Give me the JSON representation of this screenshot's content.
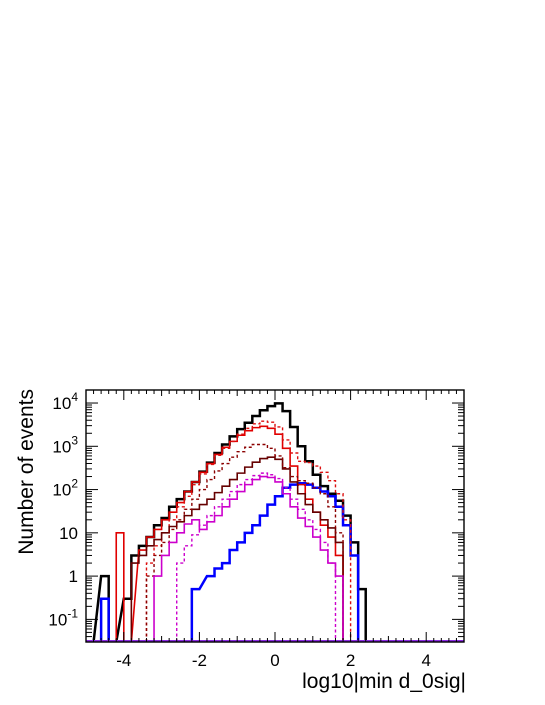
{
  "chart_data": {
    "type": "histogram",
    "xlabel": "log10|min d_0sig|",
    "ylabel": "Number of events",
    "x_range": [
      -5,
      5
    ],
    "y_range": [
      0.03,
      20000
    ],
    "y_scale": "log",
    "bin_width": 0.2,
    "x_ticks": [
      {
        "value": -4,
        "label": "-4"
      },
      {
        "value": -2,
        "label": "-2"
      },
      {
        "value": 0,
        "label": "0"
      },
      {
        "value": 2,
        "label": "2"
      },
      {
        "value": 4,
        "label": "4"
      }
    ],
    "y_ticks": [
      {
        "value": 0.1,
        "base": "10",
        "exp": "-1"
      },
      {
        "value": 1,
        "base": "1",
        "exp": ""
      },
      {
        "value": 10,
        "base": "10",
        "exp": ""
      },
      {
        "value": 100,
        "base": "10",
        "exp": "2"
      },
      {
        "value": 1000,
        "base": "10",
        "exp": "3"
      },
      {
        "value": 10000,
        "base": "10",
        "exp": "4"
      }
    ],
    "grid": false,
    "legend": "none",
    "series": [
      {
        "color": "#000000",
        "style": "solid",
        "width": 2.5,
        "points": [
          [
            -5.0,
            0
          ],
          [
            -4.6,
            1
          ],
          [
            -4.4,
            0
          ],
          [
            -4.0,
            0.3
          ],
          [
            -3.8,
            3
          ],
          [
            -3.6,
            5
          ],
          [
            -3.4,
            8
          ],
          [
            -3.2,
            15
          ],
          [
            -3.0,
            22
          ],
          [
            -2.8,
            40
          ],
          [
            -2.6,
            60
          ],
          [
            -2.4,
            90
          ],
          [
            -2.2,
            150
          ],
          [
            -2.0,
            260
          ],
          [
            -1.8,
            420
          ],
          [
            -1.6,
            700
          ],
          [
            -1.4,
            1100
          ],
          [
            -1.2,
            1700
          ],
          [
            -1.0,
            2500
          ],
          [
            -0.8,
            3500
          ],
          [
            -0.6,
            5000
          ],
          [
            -0.4,
            6800
          ],
          [
            -0.2,
            8500
          ],
          [
            0.0,
            9800
          ],
          [
            0.2,
            6500
          ],
          [
            0.4,
            2800
          ],
          [
            0.6,
            1000
          ],
          [
            0.8,
            450
          ],
          [
            1.0,
            220
          ],
          [
            1.2,
            120
          ],
          [
            1.4,
            80
          ],
          [
            1.6,
            55
          ],
          [
            1.8,
            25
          ],
          [
            2.0,
            6
          ],
          [
            2.2,
            0.5
          ],
          [
            2.4,
            0
          ]
        ]
      },
      {
        "color": "#0000ff",
        "style": "solid",
        "width": 2.5,
        "points": [
          [
            -4.6,
            0.3
          ],
          [
            -4.4,
            0
          ],
          [
            -2.4,
            0
          ],
          [
            -2.2,
            0.5
          ],
          [
            -1.8,
            1
          ],
          [
            -1.6,
            1.5
          ],
          [
            -1.4,
            2
          ],
          [
            -1.2,
            4
          ],
          [
            -1.0,
            6
          ],
          [
            -0.8,
            10
          ],
          [
            -0.6,
            15
          ],
          [
            -0.4,
            25
          ],
          [
            -0.2,
            45
          ],
          [
            0.0,
            70
          ],
          [
            0.2,
            110
          ],
          [
            0.4,
            130
          ],
          [
            0.6,
            140
          ],
          [
            0.8,
            130
          ],
          [
            1.0,
            110
          ],
          [
            1.2,
            90
          ],
          [
            1.4,
            70
          ],
          [
            1.6,
            40
          ],
          [
            1.8,
            15
          ],
          [
            2.0,
            3
          ],
          [
            2.2,
            0
          ]
        ]
      },
      {
        "color": "#e00000",
        "style": "solid",
        "width": 1.6,
        "points": [
          [
            -4.2,
            10
          ],
          [
            -4.0,
            0
          ],
          [
            -3.6,
            4
          ],
          [
            -3.4,
            8
          ],
          [
            -3.2,
            12
          ],
          [
            -3.0,
            20
          ],
          [
            -2.8,
            30
          ],
          [
            -2.6,
            50
          ],
          [
            -2.4,
            90
          ],
          [
            -2.2,
            150
          ],
          [
            -2.0,
            250
          ],
          [
            -1.8,
            400
          ],
          [
            -1.6,
            650
          ],
          [
            -1.4,
            950
          ],
          [
            -1.2,
            1300
          ],
          [
            -1.0,
            1800
          ],
          [
            -0.8,
            2300
          ],
          [
            -0.6,
            2700
          ],
          [
            -0.4,
            2900
          ],
          [
            -0.2,
            2600
          ],
          [
            0.0,
            1900
          ],
          [
            0.2,
            900
          ],
          [
            0.4,
            350
          ],
          [
            0.6,
            130
          ],
          [
            0.8,
            60
          ],
          [
            1.0,
            30
          ],
          [
            1.2,
            15
          ],
          [
            1.4,
            8
          ],
          [
            1.6,
            3
          ],
          [
            1.8,
            0
          ]
        ]
      },
      {
        "color": "#dd1010",
        "style": "dashed",
        "width": 1.4,
        "points": [
          [
            -3.4,
            2
          ],
          [
            -3.2,
            5
          ],
          [
            -3.0,
            10
          ],
          [
            -2.8,
            20
          ],
          [
            -2.6,
            40
          ],
          [
            -2.4,
            70
          ],
          [
            -2.2,
            130
          ],
          [
            -2.0,
            230
          ],
          [
            -1.8,
            380
          ],
          [
            -1.6,
            620
          ],
          [
            -1.4,
            900
          ],
          [
            -1.2,
            1300
          ],
          [
            -1.0,
            1900
          ],
          [
            -0.8,
            2600
          ],
          [
            -0.6,
            3300
          ],
          [
            -0.4,
            3800
          ],
          [
            -0.2,
            3600
          ],
          [
            0.0,
            2800
          ],
          [
            0.2,
            1400
          ],
          [
            0.4,
            700
          ],
          [
            0.6,
            450
          ],
          [
            0.8,
            420
          ],
          [
            1.0,
            350
          ],
          [
            1.2,
            250
          ],
          [
            1.4,
            160
          ],
          [
            1.6,
            80
          ],
          [
            1.8,
            20
          ],
          [
            2.0,
            0
          ]
        ]
      },
      {
        "color": "#660000",
        "style": "solid",
        "width": 1.6,
        "points": [
          [
            -4.0,
            0
          ],
          [
            -3.8,
            2
          ],
          [
            -3.6,
            3
          ],
          [
            -3.4,
            5
          ],
          [
            -3.2,
            7
          ],
          [
            -3.0,
            10
          ],
          [
            -2.8,
            14
          ],
          [
            -2.6,
            18
          ],
          [
            -2.4,
            25
          ],
          [
            -2.2,
            35
          ],
          [
            -2.0,
            45
          ],
          [
            -1.8,
            60
          ],
          [
            -1.6,
            85
          ],
          [
            -1.4,
            120
          ],
          [
            -1.2,
            170
          ],
          [
            -1.0,
            240
          ],
          [
            -0.8,
            330
          ],
          [
            -0.6,
            430
          ],
          [
            -0.4,
            520
          ],
          [
            -0.2,
            560
          ],
          [
            0.0,
            500
          ],
          [
            0.2,
            300
          ],
          [
            0.4,
            150
          ],
          [
            0.6,
            80
          ],
          [
            0.8,
            45
          ],
          [
            1.0,
            30
          ],
          [
            1.2,
            20
          ],
          [
            1.4,
            13
          ],
          [
            1.6,
            6
          ],
          [
            1.8,
            0
          ]
        ]
      },
      {
        "color": "#8b0000",
        "style": "dashed",
        "width": 1.4,
        "points": [
          [
            -3.4,
            1
          ],
          [
            -3.2,
            3
          ],
          [
            -3.0,
            6
          ],
          [
            -2.8,
            12
          ],
          [
            -2.6,
            20
          ],
          [
            -2.4,
            35
          ],
          [
            -2.2,
            60
          ],
          [
            -2.0,
            100
          ],
          [
            -1.8,
            170
          ],
          [
            -1.6,
            270
          ],
          [
            -1.4,
            400
          ],
          [
            -1.2,
            560
          ],
          [
            -1.0,
            750
          ],
          [
            -0.8,
            950
          ],
          [
            -0.6,
            1100
          ],
          [
            -0.4,
            1100
          ],
          [
            -0.2,
            900
          ],
          [
            0.0,
            600
          ],
          [
            0.2,
            320
          ],
          [
            0.4,
            200
          ],
          [
            0.6,
            160
          ],
          [
            0.8,
            140
          ],
          [
            1.0,
            110
          ],
          [
            1.2,
            80
          ],
          [
            1.4,
            40
          ],
          [
            1.6,
            10
          ],
          [
            1.8,
            0
          ]
        ]
      },
      {
        "color": "#cc00cc",
        "style": "solid",
        "width": 1.6,
        "points": [
          [
            -3.4,
            0
          ],
          [
            -3.2,
            1
          ],
          [
            -3.0,
            3
          ],
          [
            -2.8,
            6
          ],
          [
            -2.6,
            10
          ],
          [
            -2.4,
            16
          ],
          [
            -2.2,
            20
          ],
          [
            -2.0,
            12
          ],
          [
            -1.8,
            18
          ],
          [
            -1.6,
            25
          ],
          [
            -1.4,
            40
          ],
          [
            -1.2,
            60
          ],
          [
            -1.0,
            90
          ],
          [
            -0.8,
            130
          ],
          [
            -0.6,
            170
          ],
          [
            -0.4,
            200
          ],
          [
            -0.2,
            190
          ],
          [
            0.0,
            150
          ],
          [
            0.2,
            80
          ],
          [
            0.4,
            40
          ],
          [
            0.6,
            22
          ],
          [
            0.8,
            14
          ],
          [
            1.0,
            8
          ],
          [
            1.2,
            4
          ],
          [
            1.4,
            2
          ],
          [
            1.6,
            1
          ],
          [
            1.8,
            0
          ]
        ]
      },
      {
        "color": "#cc00cc",
        "style": "dashed",
        "width": 1.4,
        "points": [
          [
            -2.6,
            2
          ],
          [
            -2.4,
            5
          ],
          [
            -2.2,
            9
          ],
          [
            -2.0,
            15
          ],
          [
            -1.8,
            25
          ],
          [
            -1.6,
            40
          ],
          [
            -1.4,
            60
          ],
          [
            -1.2,
            90
          ],
          [
            -1.0,
            130
          ],
          [
            -0.8,
            170
          ],
          [
            -0.6,
            210
          ],
          [
            -0.4,
            240
          ],
          [
            -0.2,
            220
          ],
          [
            0.0,
            180
          ],
          [
            0.2,
            110
          ],
          [
            0.4,
            60
          ],
          [
            0.6,
            35
          ],
          [
            0.8,
            20
          ],
          [
            1.0,
            12
          ],
          [
            1.2,
            6
          ],
          [
            1.4,
            2
          ],
          [
            1.6,
            0
          ]
        ]
      }
    ]
  }
}
